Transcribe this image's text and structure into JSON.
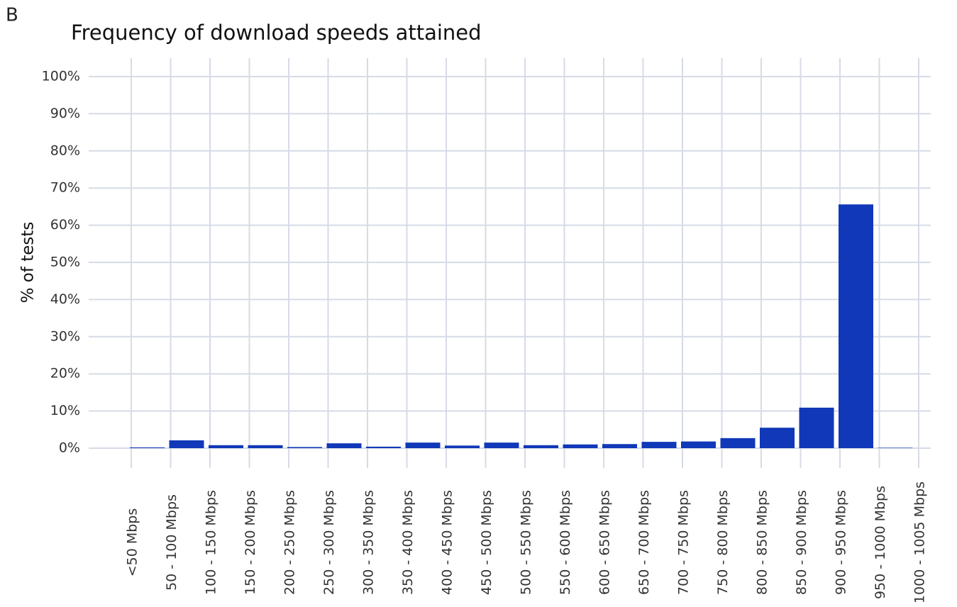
{
  "panel_label": "B",
  "chart_data": {
    "type": "bar",
    "title": "Frequency of download speeds attained",
    "y_label": "% of tests",
    "categories": [
      "<50 Mbps",
      "50 - 100 Mbps",
      "100 - 150 Mbps",
      "150 - 200 Mbps",
      "200 - 250 Mbps",
      "250 - 300 Mbps",
      "300 - 350 Mbps",
      "350 - 400 Mbps",
      "400 - 450 Mbps",
      "450 - 500 Mbps",
      "500 - 550 Mbps",
      "550 - 600 Mbps",
      "600 - 650 Mbps",
      "650 - 700 Mbps",
      "700 - 750 Mbps",
      "750 - 800 Mbps",
      "800 - 850 Mbps",
      "850 - 900 Mbps",
      "900 - 950 Mbps",
      "950 - 1000 Mbps",
      "1000 - 1005 Mbps"
    ],
    "values": [
      0.2,
      2.1,
      0.8,
      0.8,
      0.3,
      1.3,
      0.4,
      1.5,
      0.7,
      1.5,
      0.8,
      1.0,
      1.1,
      1.7,
      1.8,
      2.7,
      5.5,
      10.9,
      65.6,
      0.1,
      0
    ],
    "color": "#1038b8",
    "ylim": [
      0,
      100
    ],
    "yticks": [
      {
        "value": 0,
        "label": "0%"
      },
      {
        "value": 10,
        "label": "10%"
      },
      {
        "value": 20,
        "label": "20%"
      },
      {
        "value": 30,
        "label": "30%"
      },
      {
        "value": 40,
        "label": "40%"
      },
      {
        "value": 50,
        "label": "50%"
      },
      {
        "value": 60,
        "label": "60%"
      },
      {
        "value": 70,
        "label": "70%"
      },
      {
        "value": 80,
        "label": "80%"
      },
      {
        "value": 90,
        "label": "90%"
      },
      {
        "value": 100,
        "label": "100%"
      }
    ],
    "grid": true
  }
}
